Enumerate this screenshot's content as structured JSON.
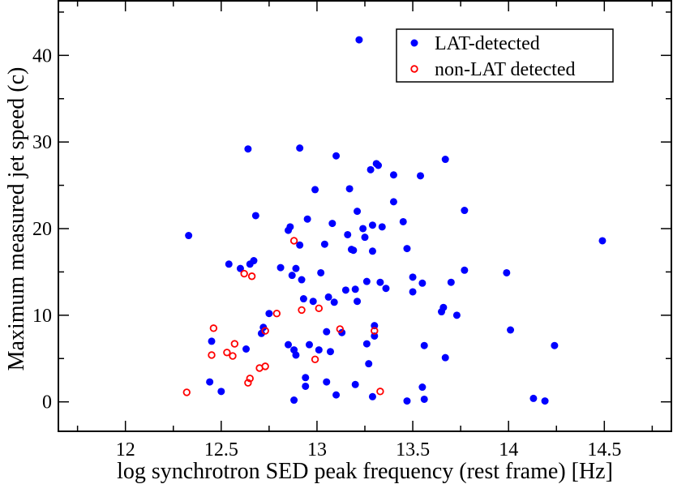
{
  "chart_data": {
    "type": "scatter",
    "title": "",
    "xlabel": "log synchrotron SED peak frequency (rest frame) [Hz]",
    "ylabel": "Maximum measured jet speed (c)",
    "xlim": [
      11.65,
      14.85
    ],
    "ylim": [
      -3.4,
      46.3
    ],
    "x_ticks": [
      12,
      12.5,
      13,
      13.5,
      14,
      14.5
    ],
    "x_tick_labels": [
      "12",
      "12.5",
      "13",
      "13.5",
      "14",
      "14.5"
    ],
    "y_ticks": [
      0,
      10,
      20,
      30,
      40
    ],
    "y_tick_labels": [
      "0",
      "10",
      "20",
      "30",
      "40"
    ],
    "legend_position": "top-right",
    "grid": false,
    "series": [
      {
        "name": "LAT-detected",
        "marker": "filled-circle",
        "color": "#0000ff",
        "points": [
          [
            12.33,
            19.2
          ],
          [
            12.44,
            2.3
          ],
          [
            12.45,
            7.0
          ],
          [
            12.5,
            1.2
          ],
          [
            12.54,
            15.9
          ],
          [
            12.6,
            15.4
          ],
          [
            12.63,
            6.1
          ],
          [
            12.64,
            29.2
          ],
          [
            12.65,
            15.9
          ],
          [
            12.67,
            16.3
          ],
          [
            12.68,
            21.5
          ],
          [
            12.71,
            7.9
          ],
          [
            12.72,
            8.6
          ],
          [
            12.75,
            10.2
          ],
          [
            12.81,
            15.5
          ],
          [
            12.85,
            6.6
          ],
          [
            12.85,
            19.8
          ],
          [
            12.86,
            20.2
          ],
          [
            12.87,
            14.6
          ],
          [
            12.88,
            6.0
          ],
          [
            12.88,
            0.2
          ],
          [
            12.89,
            5.4
          ],
          [
            12.89,
            15.4
          ],
          [
            12.91,
            29.3
          ],
          [
            12.91,
            18.1
          ],
          [
            12.92,
            14.1
          ],
          [
            12.93,
            11.9
          ],
          [
            12.94,
            2.8
          ],
          [
            12.94,
            1.8
          ],
          [
            12.95,
            21.1
          ],
          [
            12.96,
            6.6
          ],
          [
            12.98,
            11.6
          ],
          [
            12.99,
            24.5
          ],
          [
            13.01,
            6.0
          ],
          [
            13.02,
            14.9
          ],
          [
            13.04,
            18.2
          ],
          [
            13.05,
            2.3
          ],
          [
            13.05,
            8.1
          ],
          [
            13.06,
            12.1
          ],
          [
            13.07,
            5.8
          ],
          [
            13.08,
            20.6
          ],
          [
            13.09,
            11.5
          ],
          [
            13.1,
            28.4
          ],
          [
            13.1,
            0.8
          ],
          [
            13.13,
            8.0
          ],
          [
            13.15,
            12.9
          ],
          [
            13.16,
            19.3
          ],
          [
            13.17,
            24.6
          ],
          [
            13.18,
            17.6
          ],
          [
            13.19,
            17.5
          ],
          [
            13.2,
            2.0
          ],
          [
            13.2,
            13.0
          ],
          [
            13.21,
            22.0
          ],
          [
            13.21,
            11.6
          ],
          [
            13.22,
            41.8
          ],
          [
            13.24,
            20.0
          ],
          [
            13.25,
            19.0
          ],
          [
            13.26,
            13.9
          ],
          [
            13.26,
            6.7
          ],
          [
            13.27,
            4.4
          ],
          [
            13.28,
            26.8
          ],
          [
            13.29,
            20.4
          ],
          [
            13.29,
            17.4
          ],
          [
            13.29,
            0.6
          ],
          [
            13.3,
            7.6
          ],
          [
            13.3,
            8.8
          ],
          [
            13.31,
            27.5
          ],
          [
            13.32,
            27.3
          ],
          [
            13.33,
            13.8
          ],
          [
            13.34,
            20.2
          ],
          [
            13.36,
            13.1
          ],
          [
            13.4,
            23.1
          ],
          [
            13.4,
            26.2
          ],
          [
            13.45,
            20.8
          ],
          [
            13.47,
            0.1
          ],
          [
            13.47,
            17.7
          ],
          [
            13.5,
            14.4
          ],
          [
            13.5,
            12.7
          ],
          [
            13.54,
            26.1
          ],
          [
            13.55,
            1.7
          ],
          [
            13.55,
            13.7
          ],
          [
            13.56,
            6.5
          ],
          [
            13.56,
            0.3
          ],
          [
            13.65,
            10.4
          ],
          [
            13.66,
            10.9
          ],
          [
            13.67,
            28.0
          ],
          [
            13.67,
            5.1
          ],
          [
            13.7,
            13.8
          ],
          [
            13.73,
            10.0
          ],
          [
            13.77,
            22.1
          ],
          [
            13.77,
            15.2
          ],
          [
            13.99,
            14.9
          ],
          [
            14.01,
            8.3
          ],
          [
            14.13,
            0.4
          ],
          [
            14.19,
            0.1
          ],
          [
            14.24,
            6.5
          ],
          [
            14.49,
            18.6
          ]
        ]
      },
      {
        "name": "non-LAT detected",
        "marker": "open-circle",
        "color": "#ff0000",
        "points": [
          [
            12.32,
            1.1
          ],
          [
            12.45,
            5.4
          ],
          [
            12.46,
            8.5
          ],
          [
            12.53,
            5.7
          ],
          [
            12.56,
            5.3
          ],
          [
            12.57,
            6.7
          ],
          [
            12.62,
            14.8
          ],
          [
            12.64,
            2.2
          ],
          [
            12.65,
            2.7
          ],
          [
            12.66,
            14.5
          ],
          [
            12.7,
            3.9
          ],
          [
            12.73,
            4.1
          ],
          [
            12.73,
            8.2
          ],
          [
            12.79,
            10.2
          ],
          [
            12.88,
            18.6
          ],
          [
            12.92,
            10.6
          ],
          [
            12.99,
            4.9
          ],
          [
            13.01,
            10.8
          ],
          [
            13.12,
            8.4
          ],
          [
            13.3,
            8.2
          ],
          [
            13.33,
            1.2
          ]
        ]
      }
    ]
  }
}
